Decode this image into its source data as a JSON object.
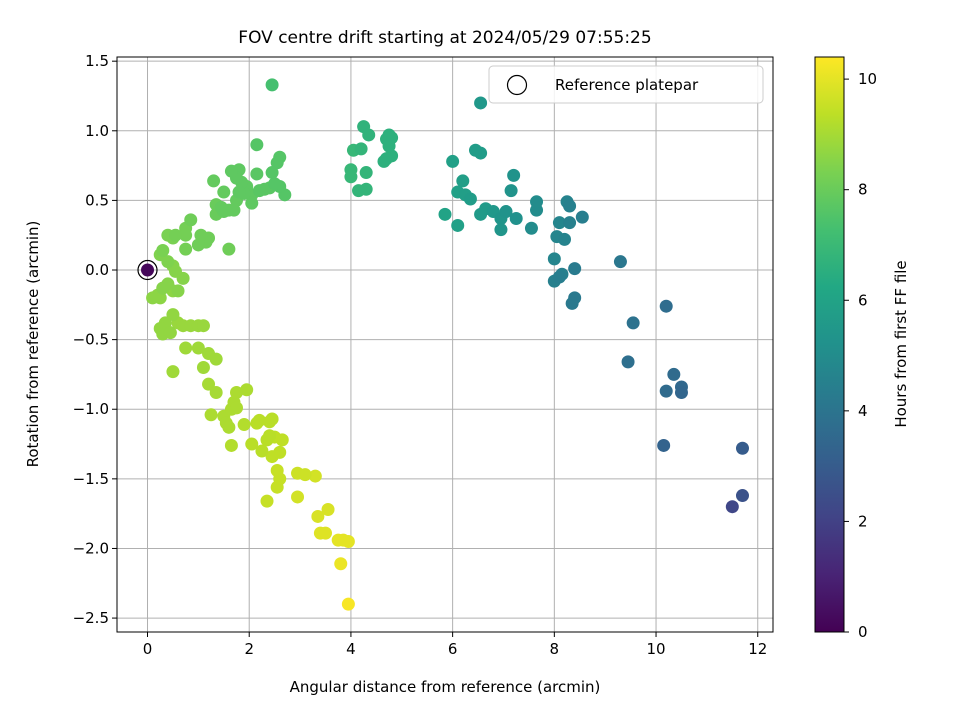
{
  "chart_data": {
    "type": "scatter",
    "title": "FOV centre drift starting at 2024/05/29 07:55:25",
    "xlabel": "Angular distance from reference (arcmin)",
    "ylabel": "Rotation from reference (arcmin)",
    "colorbar_label": "Hours from first FF file",
    "colormap": "viridis",
    "xlim": [
      -0.6,
      12.3
    ],
    "ylim": [
      -2.6,
      1.53
    ],
    "clim": [
      0,
      10.4
    ],
    "xticks": [
      0,
      2,
      4,
      6,
      8,
      10,
      12
    ],
    "xtick_labels": [
      "0",
      "2",
      "4",
      "6",
      "8",
      "10",
      "12"
    ],
    "yticks": [
      1.5,
      1.0,
      0.5,
      0.0,
      -0.5,
      -1.0,
      -1.5,
      -2.0,
      -2.5
    ],
    "ytick_labels": [
      "1.5",
      "1.0",
      "0.5",
      "0.0",
      "−0.5",
      "−1.0",
      "−1.5",
      "−2.0",
      "−2.5"
    ],
    "cticks": [
      0,
      2,
      4,
      6,
      8,
      10
    ],
    "ctick_labels": [
      "0",
      "2",
      "4",
      "6",
      "8",
      "10"
    ],
    "grid": true,
    "legend": {
      "label": "Reference platepar",
      "placement": "top-right"
    },
    "reference_point": {
      "x": 0.0,
      "y": 0.0
    },
    "points": [
      [
        0.0,
        0.0,
        0.2
      ],
      [
        11.7,
        -1.62,
        2.6
      ],
      [
        11.5,
        -1.7,
        2.2
      ],
      [
        11.7,
        -1.28,
        3.0
      ],
      [
        10.5,
        -0.88,
        3.4
      ],
      [
        10.5,
        -0.84,
        3.5
      ],
      [
        10.35,
        -0.75,
        3.6
      ],
      [
        10.2,
        -0.87,
        3.6
      ],
      [
        10.15,
        -1.26,
        3.3
      ],
      [
        10.2,
        -0.26,
        3.7
      ],
      [
        9.55,
        -0.38,
        3.9
      ],
      [
        9.45,
        -0.66,
        3.8
      ],
      [
        9.3,
        0.06,
        4.1
      ],
      [
        8.55,
        0.38,
        4.4
      ],
      [
        8.4,
        0.01,
        4.3
      ],
      [
        8.4,
        -0.2,
        4.2
      ],
      [
        8.35,
        -0.24,
        4.2
      ],
      [
        8.3,
        0.34,
        4.5
      ],
      [
        8.3,
        0.46,
        4.5
      ],
      [
        8.25,
        0.49,
        4.6
      ],
      [
        8.2,
        0.22,
        4.6
      ],
      [
        8.15,
        -0.03,
        4.5
      ],
      [
        8.1,
        0.34,
        4.7
      ],
      [
        8.1,
        -0.05,
        4.4
      ],
      [
        8.05,
        0.24,
        4.7
      ],
      [
        8.0,
        -0.08,
        4.5
      ],
      [
        8.0,
        0.08,
        4.7
      ],
      [
        7.65,
        0.43,
        5.0
      ],
      [
        7.65,
        0.49,
        5.0
      ],
      [
        7.55,
        0.3,
        5.0
      ],
      [
        7.25,
        0.37,
        5.2
      ],
      [
        7.2,
        0.68,
        5.3
      ],
      [
        7.15,
        0.57,
        5.3
      ],
      [
        7.05,
        0.42,
        5.3
      ],
      [
        6.95,
        0.37,
        5.4
      ],
      [
        6.95,
        0.29,
        5.4
      ],
      [
        6.8,
        0.42,
        5.5
      ],
      [
        6.65,
        0.44,
        5.6
      ],
      [
        6.55,
        0.4,
        5.6
      ],
      [
        6.55,
        0.84,
        5.7
      ],
      [
        6.45,
        0.86,
        5.7
      ],
      [
        6.35,
        0.51,
        5.7
      ],
      [
        6.25,
        0.54,
        5.8
      ],
      [
        6.2,
        0.64,
        5.8
      ],
      [
        6.1,
        0.56,
        5.9
      ],
      [
        6.1,
        0.32,
        5.9
      ],
      [
        6.0,
        0.78,
        5.9
      ],
      [
        5.85,
        0.4,
        6.0
      ],
      [
        6.55,
        1.2,
        5.5
      ],
      [
        4.8,
        0.95,
        6.6
      ],
      [
        4.8,
        0.82,
        6.6
      ],
      [
        4.75,
        0.97,
        6.6
      ],
      [
        4.75,
        0.89,
        6.6
      ],
      [
        4.7,
        0.94,
        6.6
      ],
      [
        4.7,
        0.8,
        6.6
      ],
      [
        4.65,
        0.78,
        6.6
      ],
      [
        4.35,
        0.97,
        6.7
      ],
      [
        4.3,
        0.58,
        6.8
      ],
      [
        4.3,
        0.7,
        6.8
      ],
      [
        4.25,
        1.03,
        6.7
      ],
      [
        4.2,
        0.87,
        6.8
      ],
      [
        4.15,
        0.57,
        6.8
      ],
      [
        4.05,
        0.86,
        6.9
      ],
      [
        4.0,
        0.72,
        6.9
      ],
      [
        4.0,
        0.67,
        6.9
      ],
      [
        2.45,
        1.33,
        7.3
      ],
      [
        2.7,
        0.54,
        7.6
      ],
      [
        2.6,
        0.6,
        7.6
      ],
      [
        2.6,
        0.81,
        7.6
      ],
      [
        2.55,
        0.77,
        7.6
      ],
      [
        2.5,
        0.62,
        7.6
      ],
      [
        2.45,
        0.7,
        7.6
      ],
      [
        2.4,
        0.59,
        7.7
      ],
      [
        2.3,
        0.58,
        7.7
      ],
      [
        2.2,
        0.57,
        7.7
      ],
      [
        2.15,
        0.69,
        7.7
      ],
      [
        2.15,
        0.9,
        7.6
      ],
      [
        2.05,
        0.54,
        7.8
      ],
      [
        2.05,
        0.48,
        7.8
      ],
      [
        1.95,
        0.6,
        7.8
      ],
      [
        1.9,
        0.55,
        7.8
      ],
      [
        1.85,
        0.63,
        7.8
      ],
      [
        1.8,
        0.56,
        7.8
      ],
      [
        1.8,
        0.72,
        7.8
      ],
      [
        1.75,
        0.66,
        7.8
      ],
      [
        1.75,
        0.5,
        7.9
      ],
      [
        1.7,
        0.43,
        7.9
      ],
      [
        1.65,
        0.71,
        7.8
      ],
      [
        1.6,
        0.43,
        7.9
      ],
      [
        1.5,
        0.42,
        7.9
      ],
      [
        1.5,
        0.56,
        7.9
      ],
      [
        1.45,
        0.45,
        7.9
      ],
      [
        1.35,
        0.47,
        8.0
      ],
      [
        1.35,
        0.4,
        8.0
      ],
      [
        1.3,
        0.64,
        7.9
      ],
      [
        1.6,
        0.15,
        8.1
      ],
      [
        1.2,
        0.23,
        8.1
      ],
      [
        1.15,
        0.2,
        8.1
      ],
      [
        1.05,
        0.25,
        8.1
      ],
      [
        1.0,
        0.18,
        8.1
      ],
      [
        0.85,
        0.36,
        8.1
      ],
      [
        0.75,
        0.3,
        8.2
      ],
      [
        0.75,
        0.25,
        8.2
      ],
      [
        0.75,
        0.15,
        8.2
      ],
      [
        0.55,
        0.25,
        8.2
      ],
      [
        0.5,
        0.23,
        8.3
      ],
      [
        0.4,
        0.25,
        8.3
      ],
      [
        0.3,
        0.14,
        8.3
      ],
      [
        0.25,
        0.11,
        8.4
      ],
      [
        0.4,
        0.06,
        8.4
      ],
      [
        0.7,
        -0.06,
        8.5
      ],
      [
        0.6,
        -0.15,
        8.5
      ],
      [
        0.55,
        -0.01,
        8.5
      ],
      [
        0.5,
        0.03,
        8.5
      ],
      [
        0.4,
        -0.1,
        8.5
      ],
      [
        0.3,
        -0.13,
        8.5
      ],
      [
        0.25,
        -0.2,
        8.6
      ],
      [
        0.2,
        -0.18,
        8.6
      ],
      [
        0.1,
        -0.2,
        8.6
      ],
      [
        0.5,
        -0.15,
        8.6
      ],
      [
        0.5,
        -0.32,
        8.7
      ],
      [
        0.35,
        -0.38,
        8.7
      ],
      [
        0.25,
        -0.42,
        8.7
      ],
      [
        0.3,
        -0.46,
        8.7
      ],
      [
        0.45,
        -0.45,
        8.7
      ],
      [
        0.6,
        -0.38,
        8.8
      ],
      [
        0.7,
        -0.4,
        8.8
      ],
      [
        0.85,
        -0.4,
        8.8
      ],
      [
        1.0,
        -0.4,
        8.8
      ],
      [
        1.1,
        -0.4,
        8.8
      ],
      [
        0.75,
        -0.56,
        8.9
      ],
      [
        0.5,
        -0.73,
        8.9
      ],
      [
        1.0,
        -0.56,
        8.9
      ],
      [
        1.1,
        -0.7,
        8.9
      ],
      [
        1.2,
        -0.6,
        8.9
      ],
      [
        1.35,
        -0.64,
        8.9
      ],
      [
        1.2,
        -0.82,
        9.0
      ],
      [
        1.35,
        -0.88,
        9.0
      ],
      [
        1.5,
        -1.05,
        9.1
      ],
      [
        1.55,
        -1.1,
        9.1
      ],
      [
        1.6,
        -1.13,
        9.1
      ],
      [
        1.65,
        -1.0,
        9.1
      ],
      [
        1.7,
        -0.95,
        9.1
      ],
      [
        1.75,
        -0.99,
        9.1
      ],
      [
        1.75,
        -0.88,
        9.1
      ],
      [
        1.95,
        -0.86,
        9.1
      ],
      [
        1.25,
        -1.04,
        9.1
      ],
      [
        1.65,
        -1.26,
        9.2
      ],
      [
        1.9,
        -1.11,
        9.2
      ],
      [
        2.05,
        -1.25,
        9.3
      ],
      [
        2.15,
        -1.1,
        9.3
      ],
      [
        2.2,
        -1.08,
        9.3
      ],
      [
        2.25,
        -1.3,
        9.3
      ],
      [
        2.35,
        -1.22,
        9.3
      ],
      [
        2.4,
        -1.19,
        9.3
      ],
      [
        2.4,
        -1.09,
        9.3
      ],
      [
        2.45,
        -1.07,
        9.3
      ],
      [
        2.45,
        -1.34,
        9.4
      ],
      [
        2.5,
        -1.2,
        9.4
      ],
      [
        2.6,
        -1.31,
        9.4
      ],
      [
        2.65,
        -1.22,
        9.4
      ],
      [
        2.35,
        -1.66,
        9.5
      ],
      [
        2.55,
        -1.44,
        9.5
      ],
      [
        2.6,
        -1.5,
        9.5
      ],
      [
        2.55,
        -1.56,
        9.5
      ],
      [
        2.95,
        -1.63,
        9.7
      ],
      [
        2.95,
        -1.46,
        9.6
      ],
      [
        3.1,
        -1.47,
        9.6
      ],
      [
        3.3,
        -1.48,
        9.7
      ],
      [
        3.35,
        -1.77,
        9.8
      ],
      [
        3.4,
        -1.89,
        9.9
      ],
      [
        3.5,
        -1.89,
        9.9
      ],
      [
        3.55,
        -1.72,
        9.8
      ],
      [
        3.75,
        -1.94,
        10.0
      ],
      [
        3.85,
        -1.94,
        10.0
      ],
      [
        3.95,
        -1.95,
        10.0
      ],
      [
        3.8,
        -2.11,
        10.1
      ],
      [
        3.95,
        -2.4,
        10.3
      ]
    ]
  }
}
